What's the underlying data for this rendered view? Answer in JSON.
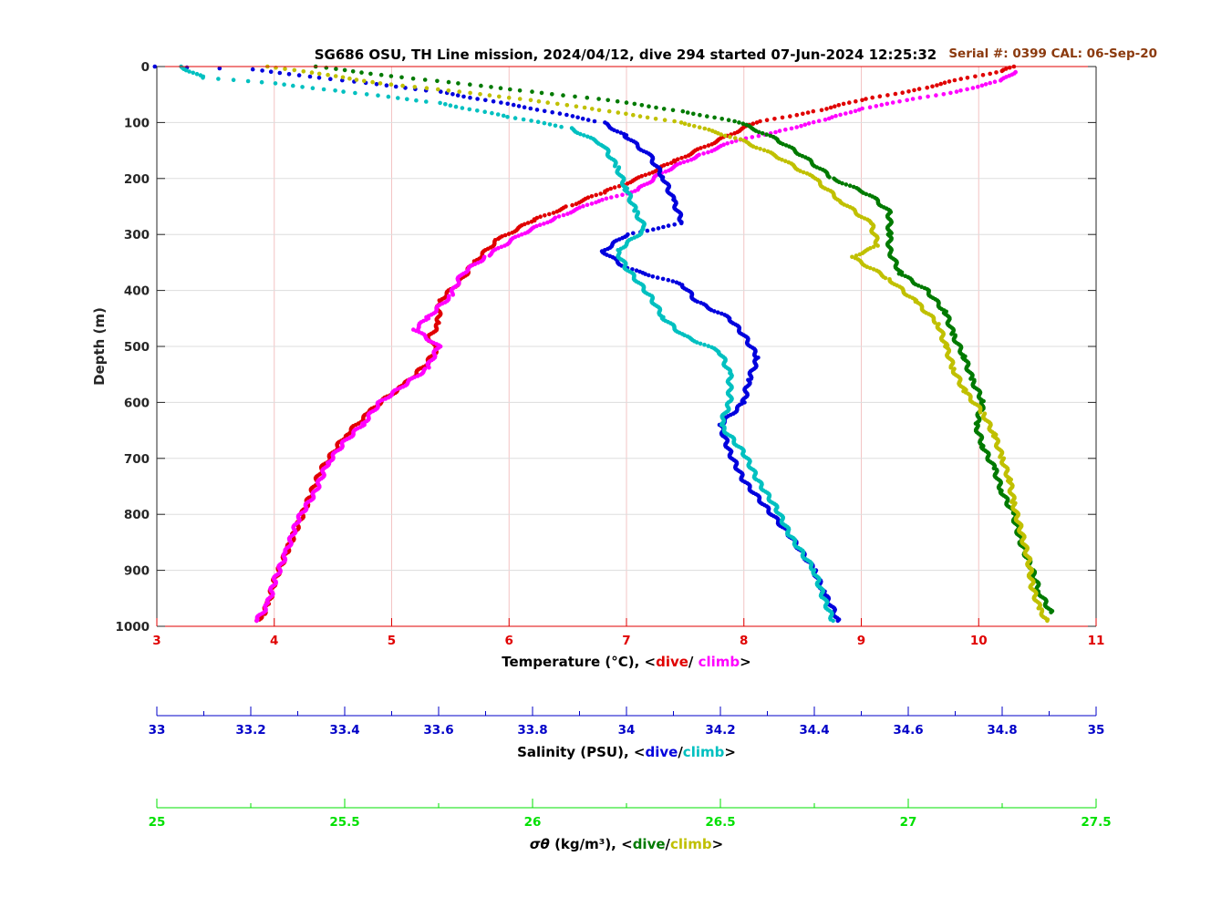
{
  "chart_data": {
    "type": "scatter",
    "title": "SG686 OSU, TH Line mission, 2024/04/12, dive 294 started 07-Jun-2024 12:25:32",
    "serial_note": "Serial #: 0399  CAL: 06-Sep-20",
    "y_axis": {
      "label": "Depth (m)",
      "range": [
        0,
        1000
      ],
      "reversed": true,
      "ticks": [
        "0",
        "100",
        "200",
        "300",
        "400",
        "500",
        "600",
        "700",
        "800",
        "900",
        "1000"
      ]
    },
    "grid": true,
    "axes": [
      {
        "id": "temperature",
        "label_prefix": "Temperature (°C), <",
        "label_dive": "dive",
        "label_sep": "/ ",
        "label_climb": "climb",
        "label_suffix": ">",
        "range": [
          3,
          11
        ],
        "ticks": [
          "3",
          "4",
          "5",
          "6",
          "7",
          "8",
          "9",
          "10",
          "11"
        ],
        "color": "#e00000"
      },
      {
        "id": "salinity",
        "label_prefix": "Salinity (PSU), <",
        "label_dive": "dive",
        "label_sep": "/",
        "label_climb": "climb",
        "label_suffix": ">",
        "range": [
          33,
          35
        ],
        "ticks": [
          "33",
          "33.2",
          "33.4",
          "33.6",
          "33.8",
          "34",
          "34.2",
          "34.4",
          "34.6",
          "34.8",
          "35"
        ],
        "color": "#0000c8"
      },
      {
        "id": "density",
        "label_prefix": " (kg/m³), <",
        "label_symbol": "σθ",
        "label_dive": "dive",
        "label_sep": "/",
        "label_climb": "climb",
        "label_suffix": ">",
        "range": [
          25,
          27.5
        ],
        "ticks": [
          "25",
          "25.5",
          "26",
          "26.5",
          "27",
          "27.5"
        ],
        "color": "#00e000"
      }
    ],
    "series": [
      {
        "axis": "temperature",
        "color": "#e00000",
        "points": [
          [
            10.3,
            0
          ],
          [
            10.2,
            8
          ],
          [
            9.9,
            20
          ],
          [
            9.5,
            40
          ],
          [
            9.0,
            60
          ],
          [
            8.6,
            80
          ],
          [
            8.1,
            100
          ],
          [
            7.8,
            130
          ],
          [
            7.4,
            170
          ],
          [
            7.1,
            200
          ],
          [
            6.8,
            225
          ],
          [
            6.5,
            250
          ],
          [
            6.2,
            275
          ],
          [
            5.9,
            310
          ],
          [
            5.7,
            350
          ],
          [
            5.6,
            380
          ],
          [
            5.4,
            420
          ],
          [
            5.4,
            460
          ],
          [
            5.3,
            490
          ],
          [
            5.4,
            500
          ],
          [
            5.3,
            530
          ],
          [
            5.1,
            570
          ],
          [
            4.9,
            600
          ],
          [
            4.8,
            620
          ],
          [
            4.6,
            660
          ],
          [
            4.5,
            690
          ],
          [
            4.4,
            720
          ],
          [
            4.3,
            770
          ],
          [
            4.2,
            820
          ],
          [
            4.1,
            870
          ],
          [
            4.0,
            920
          ],
          [
            3.95,
            960
          ],
          [
            3.9,
            980
          ],
          [
            3.85,
            990
          ]
        ]
      },
      {
        "axis": "temperature",
        "color": "#ff00ff",
        "points": [
          [
            10.3,
            10
          ],
          [
            10.2,
            25
          ],
          [
            9.8,
            45
          ],
          [
            9.4,
            60
          ],
          [
            9.0,
            75
          ],
          [
            8.7,
            95
          ],
          [
            8.3,
            115
          ],
          [
            7.9,
            135
          ],
          [
            7.6,
            160
          ],
          [
            7.3,
            190
          ],
          [
            7.1,
            220
          ],
          [
            6.7,
            245
          ],
          [
            6.4,
            270
          ],
          [
            6.1,
            300
          ],
          [
            5.8,
            340
          ],
          [
            5.6,
            370
          ],
          [
            5.5,
            410
          ],
          [
            5.3,
            450
          ],
          [
            5.2,
            470
          ],
          [
            5.4,
            500
          ],
          [
            5.3,
            540
          ],
          [
            5.1,
            570
          ],
          [
            4.9,
            600
          ],
          [
            4.75,
            640
          ],
          [
            4.6,
            670
          ],
          [
            4.45,
            710
          ],
          [
            4.35,
            760
          ],
          [
            4.2,
            810
          ],
          [
            4.1,
            870
          ],
          [
            4.0,
            920
          ],
          [
            3.95,
            960
          ],
          [
            3.85,
            990
          ]
        ]
      },
      {
        "axis": "salinity",
        "color": "#0000dd",
        "points": [
          [
            33.0,
            0
          ],
          [
            33.2,
            5
          ],
          [
            33.35,
            20
          ],
          [
            33.6,
            45
          ],
          [
            33.8,
            75
          ],
          [
            33.95,
            100
          ],
          [
            34.0,
            125
          ],
          [
            34.05,
            160
          ],
          [
            34.08,
            200
          ],
          [
            34.1,
            240
          ],
          [
            34.12,
            280
          ],
          [
            34.0,
            300
          ],
          [
            33.95,
            330
          ],
          [
            34.0,
            360
          ],
          [
            34.12,
            390
          ],
          [
            34.15,
            420
          ],
          [
            34.22,
            450
          ],
          [
            34.25,
            480
          ],
          [
            34.28,
            520
          ],
          [
            34.26,
            560
          ],
          [
            34.25,
            600
          ],
          [
            34.2,
            640
          ],
          [
            34.22,
            690
          ],
          [
            34.25,
            740
          ],
          [
            34.3,
            790
          ],
          [
            34.35,
            840
          ],
          [
            34.4,
            900
          ],
          [
            34.42,
            940
          ],
          [
            34.44,
            970
          ],
          [
            34.45,
            990
          ]
        ]
      },
      {
        "axis": "salinity",
        "color": "#00c0c0",
        "points": [
          [
            33.05,
            0
          ],
          [
            33.1,
            20
          ],
          [
            33.25,
            30
          ],
          [
            33.4,
            45
          ],
          [
            33.6,
            65
          ],
          [
            33.75,
            90
          ],
          [
            33.88,
            110
          ],
          [
            33.95,
            140
          ],
          [
            33.98,
            180
          ],
          [
            34.0,
            220
          ],
          [
            34.02,
            260
          ],
          [
            34.04,
            290
          ],
          [
            33.98,
            330
          ],
          [
            34.0,
            360
          ],
          [
            34.05,
            410
          ],
          [
            34.08,
            450
          ],
          [
            34.12,
            480
          ],
          [
            34.2,
            510
          ],
          [
            34.22,
            550
          ],
          [
            34.22,
            600
          ],
          [
            34.2,
            640
          ],
          [
            34.25,
            690
          ],
          [
            34.28,
            740
          ],
          [
            34.32,
            790
          ],
          [
            34.35,
            840
          ],
          [
            34.4,
            900
          ],
          [
            34.42,
            950
          ],
          [
            34.44,
            990
          ]
        ]
      },
      {
        "axis": "density",
        "color": "#007a00",
        "points": [
          [
            25.42,
            0
          ],
          [
            25.6,
            15
          ],
          [
            25.8,
            30
          ],
          [
            26.0,
            45
          ],
          [
            26.2,
            60
          ],
          [
            26.4,
            80
          ],
          [
            26.55,
            100
          ],
          [
            26.65,
            130
          ],
          [
            26.72,
            160
          ],
          [
            26.8,
            200
          ],
          [
            26.9,
            230
          ],
          [
            26.95,
            260
          ],
          [
            26.95,
            300
          ],
          [
            26.95,
            330
          ],
          [
            26.98,
            370
          ],
          [
            27.05,
            400
          ],
          [
            27.1,
            440
          ],
          [
            27.12,
            480
          ],
          [
            27.15,
            520
          ],
          [
            27.17,
            560
          ],
          [
            27.2,
            600
          ],
          [
            27.18,
            640
          ],
          [
            27.2,
            680
          ],
          [
            27.23,
            720
          ],
          [
            27.25,
            760
          ],
          [
            27.28,
            800
          ],
          [
            27.3,
            850
          ],
          [
            27.33,
            900
          ],
          [
            27.35,
            940
          ],
          [
            27.38,
            975
          ]
        ]
      },
      {
        "axis": "density",
        "color": "#c0c000",
        "points": [
          [
            25.3,
            0
          ],
          [
            25.45,
            15
          ],
          [
            25.6,
            30
          ],
          [
            25.8,
            45
          ],
          [
            26.0,
            60
          ],
          [
            26.2,
            80
          ],
          [
            26.4,
            100
          ],
          [
            26.55,
            130
          ],
          [
            26.65,
            160
          ],
          [
            26.75,
            200
          ],
          [
            26.82,
            240
          ],
          [
            26.9,
            280
          ],
          [
            26.92,
            320
          ],
          [
            26.85,
            340
          ],
          [
            26.95,
            380
          ],
          [
            27.02,
            420
          ],
          [
            27.08,
            460
          ],
          [
            27.1,
            500
          ],
          [
            27.12,
            540
          ],
          [
            27.15,
            580
          ],
          [
            27.2,
            620
          ],
          [
            27.23,
            660
          ],
          [
            27.25,
            700
          ],
          [
            27.27,
            740
          ],
          [
            27.28,
            780
          ],
          [
            27.3,
            830
          ],
          [
            27.32,
            880
          ],
          [
            27.33,
            930
          ],
          [
            27.35,
            970
          ],
          [
            27.37,
            990
          ]
        ]
      }
    ]
  }
}
